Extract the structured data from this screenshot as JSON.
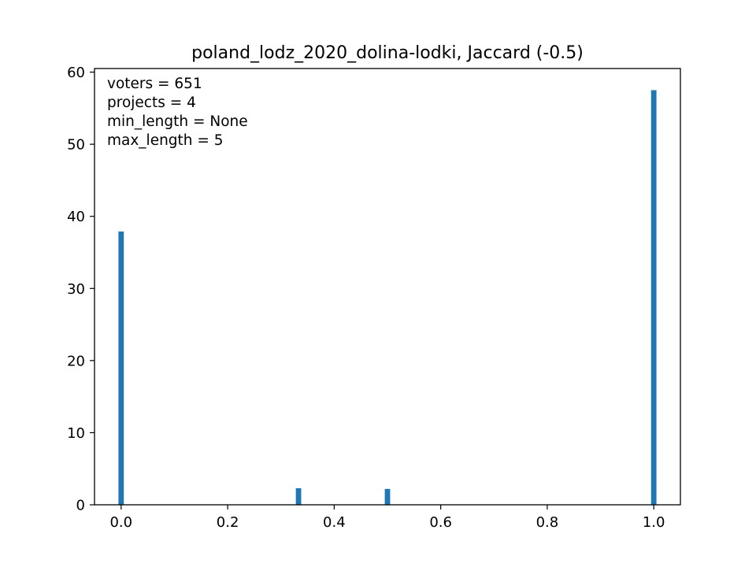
{
  "chart_data": {
    "type": "bar",
    "title": "poland_lodz_2020_dolina-lodki, Jaccard (-0.5)",
    "xlabel": "",
    "ylabel": "",
    "xlim": [
      -0.05,
      1.05
    ],
    "ylim": [
      0,
      60.5
    ],
    "x_ticks": [
      0.0,
      0.2,
      0.4,
      0.6,
      0.8,
      1.0
    ],
    "x_tick_labels": [
      "0.0",
      "0.2",
      "0.4",
      "0.6",
      "0.8",
      "1.0"
    ],
    "y_ticks": [
      0,
      10,
      20,
      30,
      40,
      50,
      60
    ],
    "y_tick_labels": [
      "0",
      "10",
      "20",
      "30",
      "40",
      "50",
      "60"
    ],
    "grid": false,
    "bar_color": "#1f77b4",
    "bin_width": 0.01,
    "points": [
      {
        "x": 0.0,
        "y": 37.9
      },
      {
        "x": 0.333,
        "y": 2.3
      },
      {
        "x": 0.5,
        "y": 2.2
      },
      {
        "x": 1.0,
        "y": 57.5
      }
    ],
    "annotations": [
      "voters = 651",
      "projects = 4",
      "min_length = None",
      "max_length = 5"
    ]
  }
}
